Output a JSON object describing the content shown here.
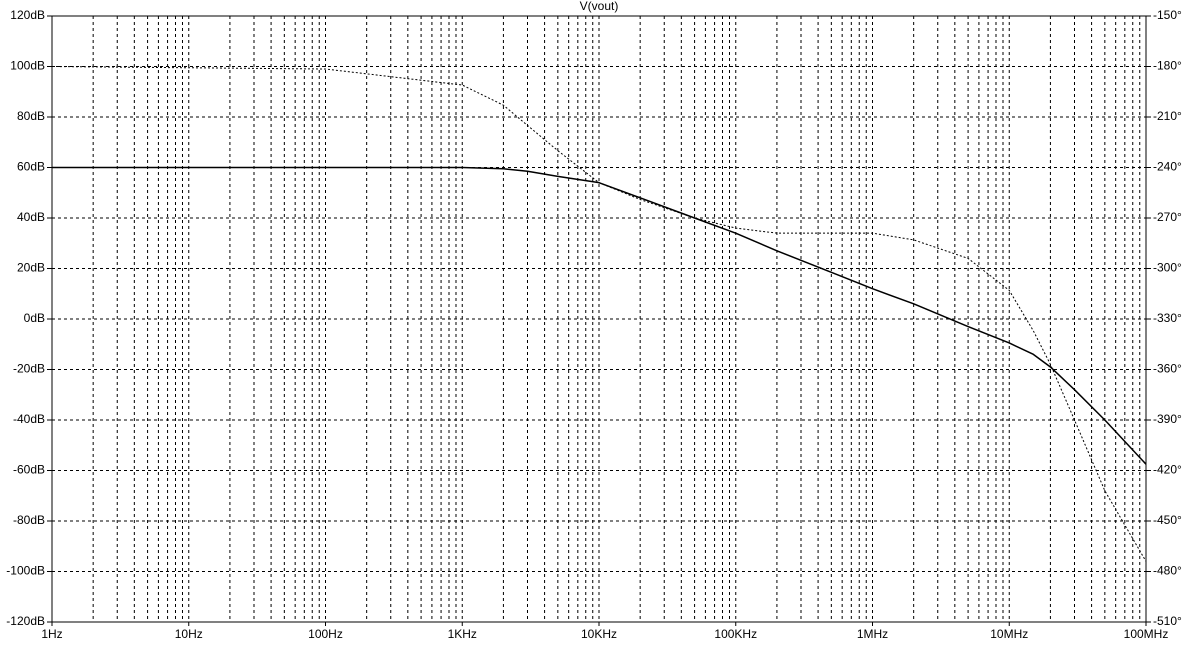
{
  "chart_data": {
    "type": "line",
    "title": "V(vout)",
    "xscale": "log",
    "grid": true,
    "xlim": [
      1,
      100000000
    ],
    "xticks": [
      {
        "value": 1,
        "label": "1Hz"
      },
      {
        "value": 10,
        "label": "10Hz"
      },
      {
        "value": 100,
        "label": "100Hz"
      },
      {
        "value": 1000,
        "label": "1KHz"
      },
      {
        "value": 10000,
        "label": "10KHz"
      },
      {
        "value": 100000,
        "label": "100KHz"
      },
      {
        "value": 1000000,
        "label": "1MHz"
      },
      {
        "value": 10000000,
        "label": "10MHz"
      },
      {
        "value": 100000000,
        "label": "100MHz"
      }
    ],
    "ylim": [
      -120,
      120
    ],
    "yticks": [
      {
        "value": 120,
        "label": "120dB"
      },
      {
        "value": 100,
        "label": "100dB"
      },
      {
        "value": 80,
        "label": "80dB"
      },
      {
        "value": 60,
        "label": "60dB"
      },
      {
        "value": 40,
        "label": "40dB"
      },
      {
        "value": 20,
        "label": "20dB"
      },
      {
        "value": 0,
        "label": "0dB"
      },
      {
        "value": -20,
        "label": "-20dB"
      },
      {
        "value": -40,
        "label": "-40dB"
      },
      {
        "value": -60,
        "label": "-60dB"
      },
      {
        "value": -80,
        "label": "-80dB"
      },
      {
        "value": -100,
        "label": "-100dB"
      },
      {
        "value": -120,
        "label": "-120dB"
      }
    ],
    "y2lim": [
      -510,
      -150
    ],
    "y2ticks": [
      {
        "value": -150,
        "label": "-150°"
      },
      {
        "value": -180,
        "label": "-180°"
      },
      {
        "value": -210,
        "label": "-210°"
      },
      {
        "value": -240,
        "label": "-240°"
      },
      {
        "value": -270,
        "label": "-270°"
      },
      {
        "value": -300,
        "label": "-300°"
      },
      {
        "value": -330,
        "label": "-330°"
      },
      {
        "value": -360,
        "label": "-360°"
      },
      {
        "value": -390,
        "label": "-390°"
      },
      {
        "value": -420,
        "label": "-420°"
      },
      {
        "value": -450,
        "label": "-450°"
      },
      {
        "value": -480,
        "label": "-480°"
      },
      {
        "value": -510,
        "label": "-510°"
      }
    ],
    "x": [
      1,
      100,
      1000,
      2000,
      3000,
      5000,
      10000,
      20000,
      50000,
      100000,
      200000,
      500000,
      1000000,
      2000000,
      5000000,
      10000000,
      15000000,
      20000000,
      30000000,
      50000000,
      100000000
    ],
    "series": [
      {
        "color": "#000000",
        "style": "solid",
        "values": [
          60,
          60,
          60,
          59.5,
          58.5,
          56.5,
          54,
          48,
          40,
          34,
          27,
          18.5,
          12,
          6,
          -3,
          -9.5,
          -14,
          -19,
          -28,
          -40,
          -57.5
        ]
      },
      {
        "color": "#000000",
        "style": "dotted",
        "axis": "y2",
        "values": [
          -180,
          -181.5,
          -191,
          -203,
          -215,
          -230,
          -249,
          -259,
          -270,
          -276,
          -279,
          -279,
          -279,
          -283,
          -294,
          -313,
          -337,
          -357,
          -390,
          -432,
          -474
        ]
      }
    ]
  }
}
